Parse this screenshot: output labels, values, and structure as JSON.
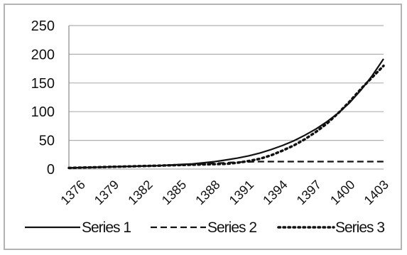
{
  "chart_data": {
    "type": "line",
    "title": "",
    "xlabel": "",
    "ylabel": "",
    "x": [
      1376,
      1377,
      1378,
      1379,
      1380,
      1381,
      1382,
      1383,
      1384,
      1385,
      1386,
      1387,
      1388,
      1389,
      1390,
      1391,
      1392,
      1393,
      1394,
      1395,
      1396,
      1397,
      1398,
      1399,
      1400,
      1401,
      1402,
      1403,
      1404
    ],
    "x_tick_labels": [
      "1376",
      "1379",
      "1382",
      "1385",
      "1388",
      "1391",
      "1394",
      "1397",
      "1400",
      "1403"
    ],
    "ylim": [
      0,
      250
    ],
    "y_ticks": [
      0,
      50,
      100,
      150,
      200,
      250
    ],
    "grid": "horizontal",
    "legend_position": "bottom",
    "series": [
      {
        "name": "Series 1",
        "style": "solid",
        "values": [
          2,
          2.5,
          3,
          3.5,
          4,
          4.5,
          5,
          5.5,
          6,
          7,
          8,
          9,
          11,
          13,
          16,
          19,
          23,
          28,
          34,
          41,
          49,
          59,
          70,
          83,
          98,
          116,
          138,
          163,
          192
        ]
      },
      {
        "name": "Series 2",
        "style": "dashed",
        "values": [
          2,
          2.5,
          3,
          3.5,
          4,
          4.5,
          5,
          5.5,
          6,
          6.5,
          7,
          8,
          9,
          10,
          11,
          12,
          12.5,
          13,
          13,
          13,
          13,
          13,
          13,
          13,
          13,
          13,
          13,
          13,
          13
        ]
      },
      {
        "name": "Series 3",
        "style": "dotted",
        "values": [
          2,
          2.5,
          3,
          3.5,
          4,
          4.5,
          5,
          5.5,
          6,
          6.5,
          7,
          7.5,
          8,
          8.5,
          9,
          11,
          14,
          18,
          24,
          32,
          41,
          52,
          65,
          80,
          98,
          118,
          140,
          160,
          180
        ]
      }
    ],
    "colors": {
      "line": "#111111",
      "grid": "#b0b0b0",
      "axis": "#888888"
    }
  }
}
